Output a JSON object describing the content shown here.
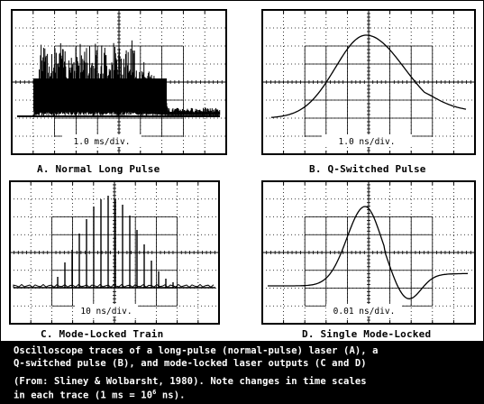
{
  "panels": [
    {
      "id": "A",
      "label": "A.  Normal Long Pulse",
      "scale": "1.0 ms/div."
    },
    {
      "id": "B",
      "label": "B.  Q-Switched Pulse",
      "scale": "1.0 ns/div."
    },
    {
      "id": "C",
      "label": "C.  Mode-Locked Train",
      "scale": "10 ns/div."
    },
    {
      "id": "D",
      "label": "D.  Single Mode-Locked",
      "scale": "0.01 ns/div."
    }
  ],
  "caption": {
    "line1": "Oscilloscope traces of a long-pulse (normal-pulse) laser (A), a",
    "line2": "Q-switched pulse (B), and mode-locked laser outputs (C and D)",
    "line3": "(From: Sliney & Wolbarsht, 1980).  Note changes in time scales",
    "line4_prefix": "in each trace (1 ms = 10",
    "line4_sup": "6",
    "line4_suffix": " ns)."
  }
}
